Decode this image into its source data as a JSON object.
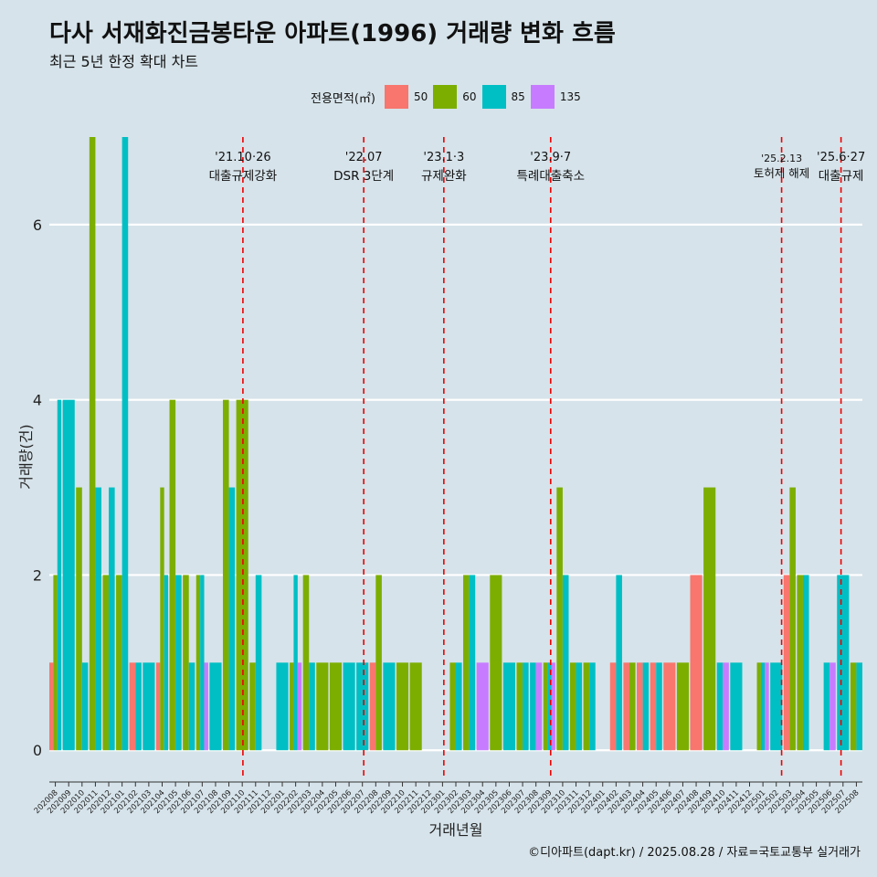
{
  "title": "다사 서재화진금봉타운 아파트(1996) 거래량 변화 흐름",
  "subtitle": "최근 5년 한정 확대 차트",
  "legend": {
    "title": "전용면적(㎡)",
    "items": [
      {
        "label": "50",
        "color": "#f8766d"
      },
      {
        "label": "60",
        "color": "#7cae00"
      },
      {
        "label": "85",
        "color": "#00bfc4"
      },
      {
        "label": "135",
        "color": "#c77cff"
      }
    ]
  },
  "caption": "©디아파트(dapt.kr) / 2025.08.28 / 자료=국토교통부 실거래가",
  "chart_data": {
    "type": "bar",
    "xlabel": "거래년월",
    "ylabel": "거래량(건)",
    "ylim": [
      -0.3,
      7.0
    ],
    "yticks": [
      0,
      2,
      4,
      6
    ],
    "grid": true,
    "categories": [
      "202008",
      "202009",
      "202010",
      "202011",
      "202012",
      "202101",
      "202102",
      "202103",
      "202104",
      "202105",
      "202106",
      "202107",
      "202108",
      "202109",
      "202110",
      "202111",
      "202112",
      "202201",
      "202202",
      "202203",
      "202204",
      "202205",
      "202206",
      "202207",
      "202208",
      "202209",
      "202210",
      "202211",
      "202212",
      "202301",
      "202302",
      "202303",
      "202304",
      "202305",
      "202306",
      "202307",
      "202308",
      "202309",
      "202310",
      "202311",
      "202312",
      "202401",
      "202402",
      "202403",
      "202404",
      "202405",
      "202406",
      "202407",
      "202408",
      "202409",
      "202410",
      "202411",
      "202412",
      "202501",
      "202502",
      "202503",
      "202504",
      "202505",
      "202506",
      "202507",
      "202508"
    ],
    "series": [
      {
        "name": "50",
        "color": "#f8766d",
        "values": [
          1,
          0,
          0,
          0,
          0,
          0,
          1,
          0,
          1,
          0,
          0,
          0,
          0,
          0,
          0,
          0,
          0,
          0,
          0,
          0,
          0,
          0,
          0,
          0,
          1,
          0,
          0,
          0,
          0,
          0,
          0,
          0,
          0,
          0,
          0,
          0,
          0,
          0,
          0,
          0,
          0,
          0,
          1,
          1,
          1,
          1,
          1,
          0,
          2,
          0,
          0,
          0,
          0,
          0,
          0,
          2,
          0,
          0,
          0,
          0,
          0
        ]
      },
      {
        "name": "60",
        "color": "#7cae00",
        "values": [
          2,
          0,
          3,
          7,
          2,
          2,
          0,
          0,
          3,
          4,
          2,
          2,
          0,
          4,
          4,
          1,
          0,
          0,
          1,
          2,
          1,
          1,
          0,
          0,
          2,
          0,
          1,
          1,
          0,
          0,
          1,
          2,
          0,
          2,
          0,
          1,
          0,
          1,
          3,
          1,
          1,
          0,
          0,
          1,
          0,
          0,
          0,
          1,
          0,
          3,
          0,
          0,
          0,
          1,
          0,
          3,
          2,
          0,
          0,
          0,
          1
        ]
      },
      {
        "name": "85",
        "color": "#00bfc4",
        "values": [
          4,
          4,
          1,
          3,
          3,
          7,
          1,
          1,
          2,
          2,
          1,
          2,
          1,
          3,
          0,
          2,
          0,
          1,
          2,
          1,
          0,
          0,
          1,
          1,
          0,
          1,
          0,
          0,
          0,
          0,
          1,
          2,
          0,
          0,
          1,
          1,
          1,
          1,
          2,
          1,
          1,
          0,
          2,
          0,
          1,
          1,
          0,
          0,
          0,
          0,
          1,
          1,
          0,
          1,
          1,
          0,
          2,
          0,
          1,
          2,
          1
        ]
      },
      {
        "name": "135",
        "color": "#c77cff",
        "values": [
          0,
          0,
          0,
          0,
          0,
          0,
          0,
          0,
          0,
          0,
          0,
          1,
          0,
          0,
          0,
          0,
          0,
          0,
          1,
          0,
          0,
          0,
          0,
          0,
          0,
          0,
          0,
          0,
          0,
          0,
          0,
          0,
          1,
          0,
          0,
          0,
          1,
          1,
          0,
          0,
          0,
          0,
          0,
          0,
          0,
          0,
          0,
          0,
          0,
          0,
          1,
          0,
          0,
          1,
          0,
          0,
          0,
          0,
          1,
          0,
          0
        ]
      }
    ],
    "annotations": [
      {
        "date": "'21.10·26",
        "text": "대출규제강화",
        "at": 14.05
      },
      {
        "date": "'22.07",
        "text": "DSR 3단계",
        "at": 23.1
      },
      {
        "date": "'23.1·3",
        "text": "규제완화",
        "at": 29.1
      },
      {
        "date": "'23.9·7",
        "text": "특례대출축소",
        "at": 37.1
      },
      {
        "date": "'25.2.13",
        "text": "토허제 해제",
        "at": 54.4
      },
      {
        "date": "'25.6·27",
        "text": "대출규제",
        "at": 58.85
      }
    ]
  }
}
